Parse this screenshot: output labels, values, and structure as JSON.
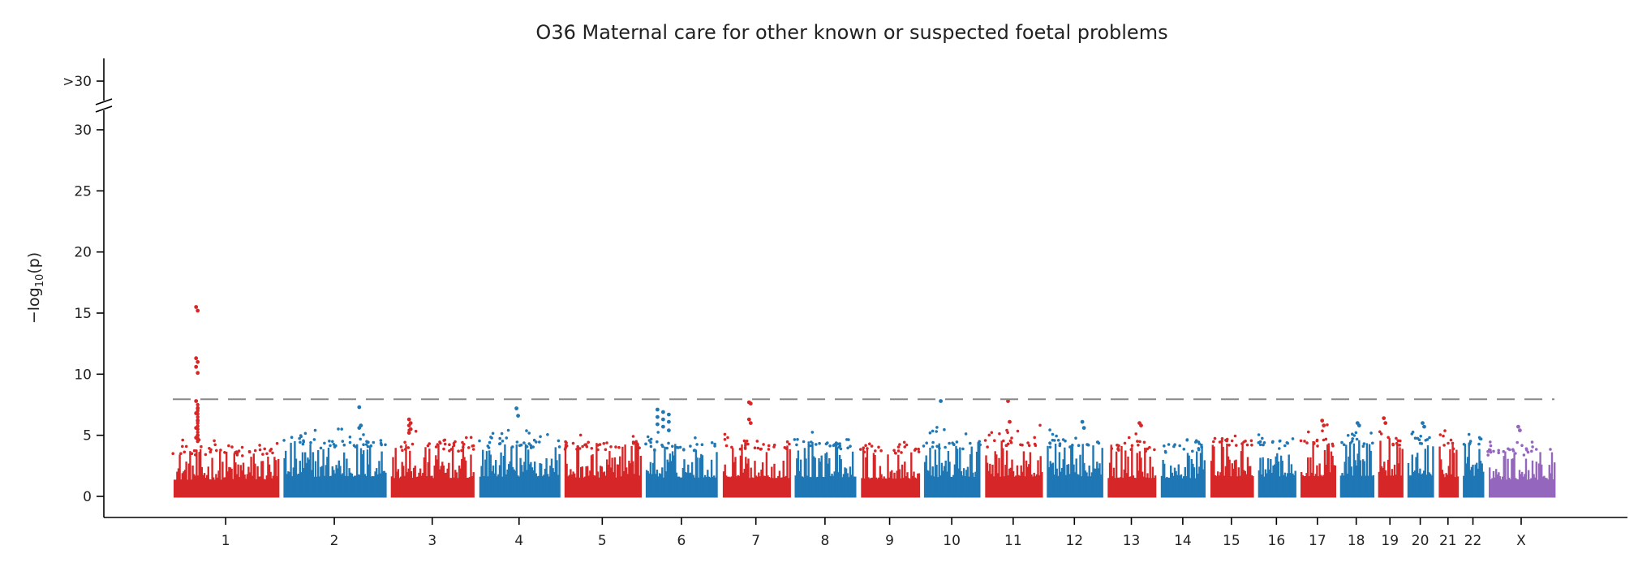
{
  "chart_data": {
    "type": "scatter",
    "subtype": "manhattan",
    "title": "O36 Maternal care for other known or suspected foetal problems",
    "ylabel": "−log",
    "ylabel_subscript": "10",
    "ylabel_suffix": "(p)",
    "ylim": [
      -1.6,
      34.5
    ],
    "y_ticks": [
      0,
      5,
      10,
      15,
      20,
      25,
      30
    ],
    "y_break_label": ">30",
    "y_axis_break": true,
    "threshold": 7.95,
    "threshold_style": "dashed",
    "grid": false,
    "legend": "none",
    "colors": {
      "red": "#d62728",
      "blue": "#1f77b4",
      "purple": "#9467bd",
      "threshold": "#888888"
    },
    "chromosomes": [
      {
        "label": "1",
        "color": "red",
        "base_max": 3.9,
        "max_p": 15.5
      },
      {
        "label": "2",
        "color": "blue",
        "base_max": 4.6,
        "max_p": 7.3
      },
      {
        "label": "3",
        "color": "red",
        "base_max": 4.3,
        "max_p": 6.3
      },
      {
        "label": "4",
        "color": "blue",
        "base_max": 4.6,
        "max_p": 7.2
      },
      {
        "label": "5",
        "color": "red",
        "base_max": 4.4,
        "max_p": 5.4
      },
      {
        "label": "6",
        "color": "blue",
        "base_max": 4.4,
        "max_p": 7.1
      },
      {
        "label": "7",
        "color": "red",
        "base_max": 4.3,
        "max_p": 7.7
      },
      {
        "label": "8",
        "color": "blue",
        "base_max": 4.5,
        "max_p": 5.5
      },
      {
        "label": "9",
        "color": "red",
        "base_max": 4.1,
        "max_p": 4.7
      },
      {
        "label": "10",
        "color": "blue",
        "base_max": 4.5,
        "max_p": 7.8
      },
      {
        "label": "11",
        "color": "red",
        "base_max": 4.6,
        "max_p": 7.8
      },
      {
        "label": "12",
        "color": "blue",
        "base_max": 4.7,
        "max_p": 6.1
      },
      {
        "label": "13",
        "color": "red",
        "base_max": 4.3,
        "max_p": 6.0
      },
      {
        "label": "14",
        "color": "blue",
        "base_max": 4.2,
        "max_p": 5.3
      },
      {
        "label": "15",
        "color": "red",
        "base_max": 4.7,
        "max_p": 5.4
      },
      {
        "label": "16",
        "color": "blue",
        "base_max": 4.6,
        "max_p": 5.4
      },
      {
        "label": "17",
        "color": "red",
        "base_max": 4.7,
        "max_p": 6.2
      },
      {
        "label": "18",
        "color": "blue",
        "base_max": 4.8,
        "max_p": 6.0
      },
      {
        "label": "19",
        "color": "red",
        "base_max": 4.8,
        "max_p": 6.4
      },
      {
        "label": "20",
        "color": "blue",
        "base_max": 4.9,
        "max_p": 6.0
      },
      {
        "label": "21",
        "color": "red",
        "base_max": 4.5,
        "max_p": 5.8
      },
      {
        "label": "22",
        "color": "blue",
        "base_max": 4.8,
        "max_p": 5.4
      },
      {
        "label": "X",
        "color": "purple",
        "base_max": 3.9,
        "max_p": 5.7
      }
    ],
    "peaks": [
      {
        "chr": "1",
        "values": [
          15.5,
          15.2,
          11.3,
          11.0,
          10.6,
          10.1,
          7.8,
          7.2,
          6.8,
          6.2,
          5.6,
          5.0,
          4.8,
          4.7
        ]
      },
      {
        "chr": "2",
        "values": [
          7.3,
          5.8,
          5.6
        ]
      },
      {
        "chr": "3",
        "values": [
          6.3,
          6.0,
          5.8,
          5.5,
          5.2
        ]
      },
      {
        "chr": "4",
        "values": [
          7.2,
          6.6
        ]
      },
      {
        "chr": "6",
        "values": [
          7.1,
          6.9,
          6.7,
          6.5,
          6.3,
          6.1,
          5.9,
          5.7,
          5.4
        ]
      },
      {
        "chr": "7",
        "values": [
          7.7,
          7.6,
          6.3,
          6.0
        ]
      },
      {
        "chr": "10",
        "values": [
          7.8
        ]
      },
      {
        "chr": "11",
        "values": [
          7.8,
          6.1
        ]
      },
      {
        "chr": "12",
        "values": [
          6.1,
          5.6
        ]
      },
      {
        "chr": "13",
        "values": [
          6.0,
          5.8
        ]
      },
      {
        "chr": "17",
        "values": [
          6.2,
          5.8
        ]
      },
      {
        "chr": "18",
        "values": [
          6.0,
          5.8
        ]
      },
      {
        "chr": "19",
        "values": [
          6.4,
          6.0
        ]
      },
      {
        "chr": "20",
        "values": [
          6.0,
          5.7
        ]
      },
      {
        "chr": "X",
        "values": [
          5.7,
          5.4
        ]
      }
    ]
  }
}
